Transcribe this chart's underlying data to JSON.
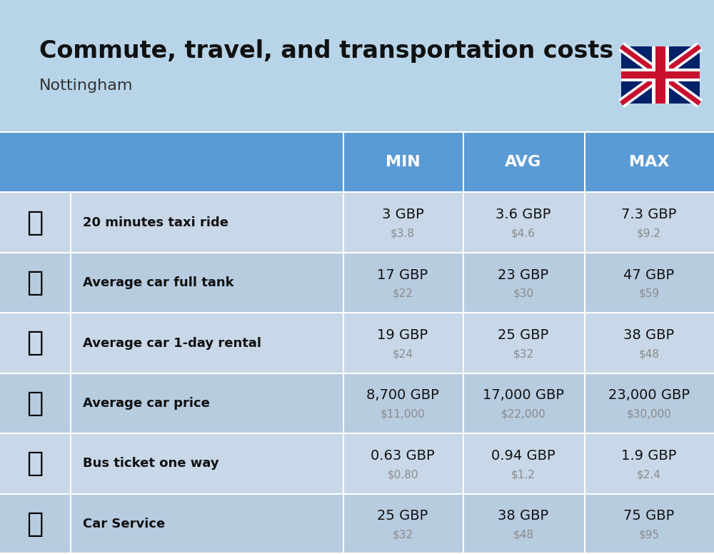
{
  "title": "Commute, travel, and transportation costs",
  "subtitle": "Nottingham",
  "background_color": "#b8d4e8",
  "header_bg_color": "#5b9bd5",
  "row_colors": [
    "#c8d8e8",
    "#b8cce0"
  ],
  "header_text_color": "#ffffff",
  "header_labels": [
    "MIN",
    "AVG",
    "MAX"
  ],
  "rows": [
    {
      "label": "20 minutes taxi ride",
      "icon": "🚕",
      "min_gbp": "3 GBP",
      "min_usd": "$3.8",
      "avg_gbp": "3.6 GBP",
      "avg_usd": "$4.6",
      "max_gbp": "7.3 GBP",
      "max_usd": "$9.2"
    },
    {
      "label": "Average car full tank",
      "icon": "⛽",
      "min_gbp": "17 GBP",
      "min_usd": "$22",
      "avg_gbp": "23 GBP",
      "avg_usd": "$30",
      "max_gbp": "47 GBP",
      "max_usd": "$59"
    },
    {
      "label": "Average car 1-day rental",
      "icon": "🚙",
      "min_gbp": "19 GBP",
      "min_usd": "$24",
      "avg_gbp": "25 GBP",
      "avg_usd": "$32",
      "max_gbp": "38 GBP",
      "max_usd": "$48"
    },
    {
      "label": "Average car price",
      "icon": "🚗",
      "min_gbp": "8,700 GBP",
      "min_usd": "$11,000",
      "avg_gbp": "17,000 GBP",
      "avg_usd": "$22,000",
      "max_gbp": "23,000 GBP",
      "max_usd": "$30,000"
    },
    {
      "label": "Bus ticket one way",
      "icon": "🚌",
      "min_gbp": "0.63 GBP",
      "min_usd": "$0.80",
      "avg_gbp": "0.94 GBP",
      "avg_usd": "$1.2",
      "max_gbp": "1.9 GBP",
      "max_usd": "$2.4"
    },
    {
      "label": "Car Service",
      "icon": "🚗",
      "min_gbp": "25 GBP",
      "min_usd": "$32",
      "avg_gbp": "38 GBP",
      "avg_usd": "$48",
      "max_gbp": "75 GBP",
      "max_usd": "$95"
    }
  ],
  "figsize": [
    10.0,
    7.76
  ],
  "title_fontsize": 24,
  "subtitle_fontsize": 16,
  "label_fontsize": 13,
  "value_fontsize": 14,
  "usd_fontsize": 11
}
